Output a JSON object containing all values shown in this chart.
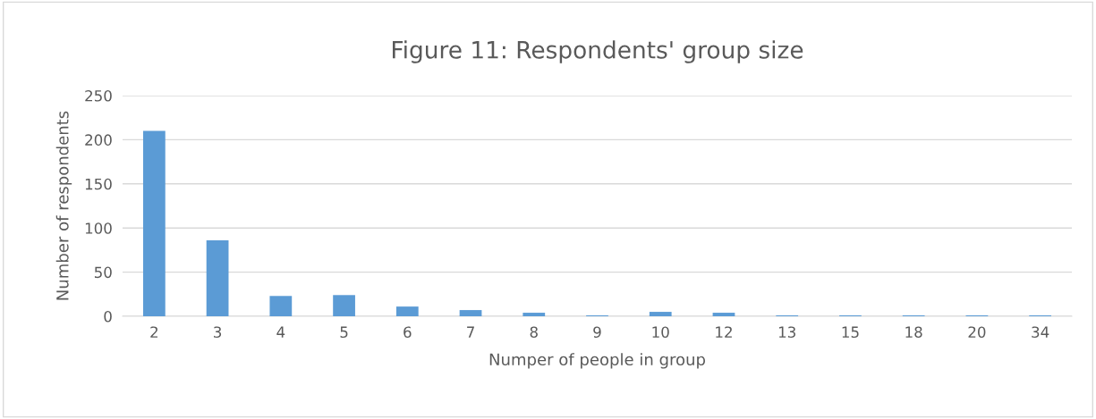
{
  "chart_data": {
    "type": "bar",
    "title": "Figure 11: Respondents' group size",
    "xlabel": "Numper of people in group",
    "ylabel": "Number of respondents",
    "categories": [
      "2",
      "3",
      "4",
      "5",
      "6",
      "7",
      "8",
      "9",
      "10",
      "12",
      "13",
      "15",
      "18",
      "20",
      "34"
    ],
    "values": [
      210,
      86,
      23,
      24,
      11,
      7,
      4,
      1,
      5,
      4,
      1,
      1,
      1,
      1,
      1
    ],
    "color": "#5b9bd5",
    "ylim": [
      0,
      250
    ],
    "yticks": [
      0,
      50,
      100,
      150,
      200,
      250
    ],
    "grid": "y"
  }
}
